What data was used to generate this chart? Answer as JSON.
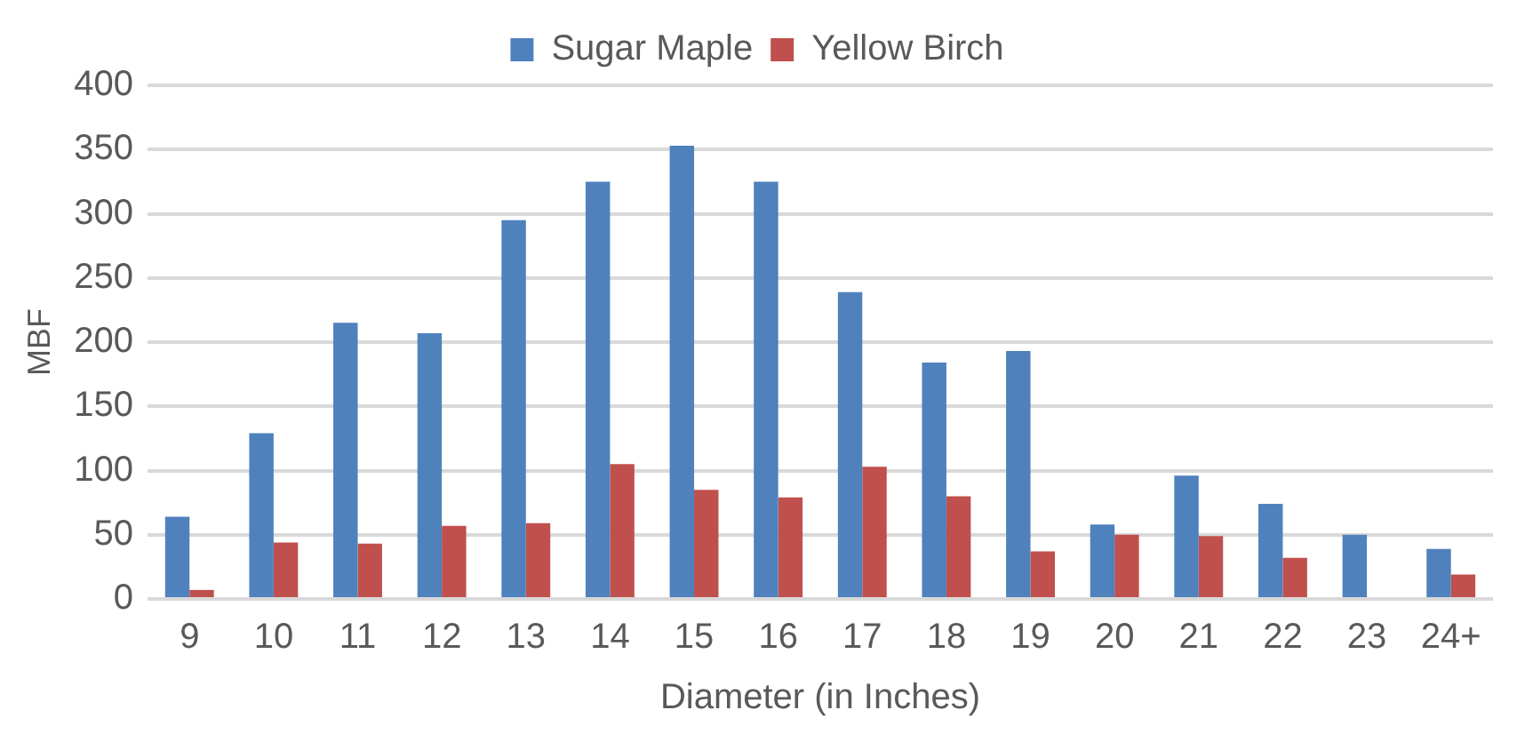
{
  "chart_data": {
    "type": "bar",
    "xlabel": "Diameter (in Inches)",
    "ylabel": "MBF",
    "categories": [
      "9",
      "10",
      "11",
      "12",
      "13",
      "14",
      "15",
      "16",
      "17",
      "18",
      "19",
      "20",
      "21",
      "22",
      "23",
      "24+"
    ],
    "series": [
      {
        "name": "Sugar Maple",
        "color": "#4f81bd",
        "values": [
          64,
          129,
          215,
          207,
          295,
          325,
          353,
          325,
          239,
          184,
          193,
          58,
          96,
          74,
          50,
          39
        ]
      },
      {
        "name": "Yellow Birch",
        "color": "#c0504d",
        "values": [
          7,
          44,
          43,
          57,
          59,
          105,
          85,
          79,
          103,
          80,
          37,
          50,
          49,
          32,
          null,
          19
        ]
      }
    ],
    "ylim": [
      0,
      400
    ],
    "yticks": [
      0,
      50,
      100,
      150,
      200,
      250,
      300,
      350,
      400
    ],
    "grid": "y",
    "legend": "top"
  }
}
